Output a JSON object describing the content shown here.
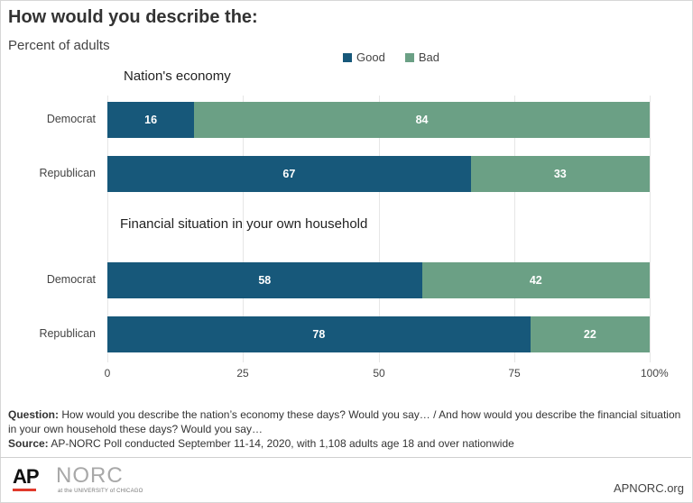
{
  "header": {
    "title": "How would you describe the:",
    "subtitle": "Percent of adults"
  },
  "legend": {
    "good": "Good",
    "bad": "Bad"
  },
  "colors": {
    "good": "#17587a",
    "bad": "#6ba085"
  },
  "chart_data": {
    "type": "bar",
    "orientation": "horizontal",
    "stacked": true,
    "xlim": [
      0,
      100
    ],
    "ticks": [
      "0",
      "25",
      "50",
      "75",
      "100"
    ],
    "tick_suffix": "%",
    "groups": [
      {
        "title": "Nation's economy",
        "rows": [
          {
            "category": "Democrat",
            "good": 16,
            "bad": 84
          },
          {
            "category": "Republican",
            "good": 67,
            "bad": 33
          }
        ]
      },
      {
        "title": "Financial situation in your own household",
        "rows": [
          {
            "category": "Democrat",
            "good": 58,
            "bad": 42
          },
          {
            "category": "Republican",
            "good": 78,
            "bad": 22
          }
        ]
      }
    ],
    "series": [
      {
        "name": "Good"
      },
      {
        "name": "Bad"
      }
    ]
  },
  "footnote": {
    "question_label": "Question:",
    "question_text": "How would you describe the nation’s economy these days? Would you say… / And how would you describe the financial situation in your own household these days? Would you say…",
    "source_label": "Source:",
    "source_text": "AP-NORC Poll conducted September 11-14, 2020, with 1,108 adults age 18 and over nationwide"
  },
  "footer": {
    "ap_logo": "AP",
    "norc_logo": "NORC",
    "norc_sub": "at the UNIVERSITY of CHICAGO",
    "site": "APNORC.org"
  }
}
